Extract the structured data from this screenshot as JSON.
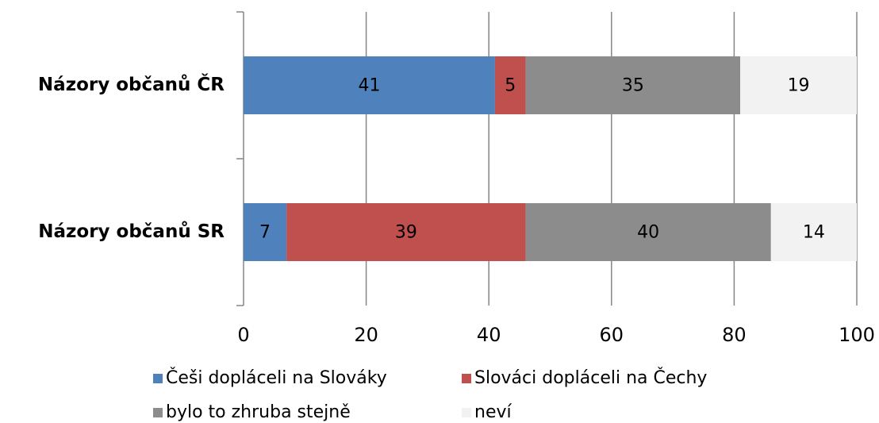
{
  "chart_data": {
    "type": "stacked-bar-horizontal",
    "categories": [
      "Názory občanů ČR",
      "Názory občanů SR"
    ],
    "series": [
      {
        "name": "Češi dopláceli na Slováky",
        "color": "#4f81bd",
        "values": [
          41,
          7
        ]
      },
      {
        "name": "Slováci dopláceli na Čechy",
        "color": "#c0504d",
        "values": [
          5,
          39
        ]
      },
      {
        "name": "bylo to zhruba stejně",
        "color": "#8c8c8c",
        "values": [
          35,
          40
        ]
      },
      {
        "name": "neví",
        "color": "#f2f2f2",
        "values": [
          19,
          14
        ]
      }
    ],
    "xlim": [
      0,
      100
    ],
    "xticks": [
      0,
      20,
      40,
      60,
      80,
      100
    ],
    "grid": true
  }
}
